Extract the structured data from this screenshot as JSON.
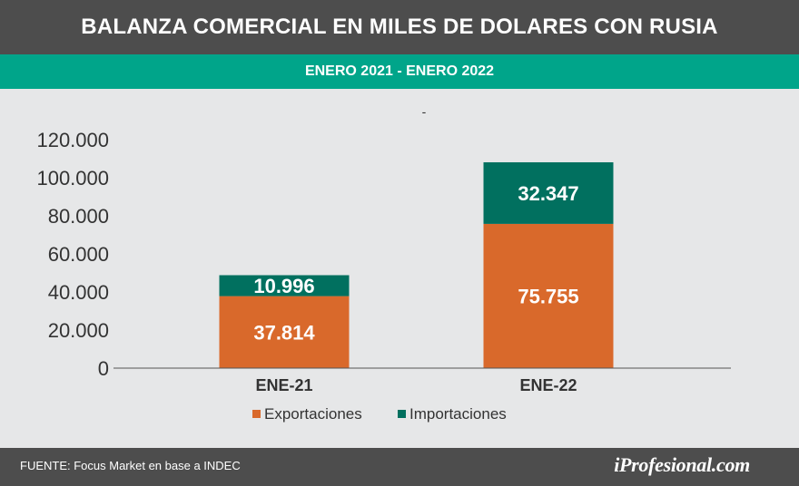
{
  "title": "BALANZA COMERCIAL EN MILES DE DOLARES CON RUSIA",
  "subtitle": "ENERO 2021 - ENERO 2022",
  "dash_mark": "-",
  "footer": {
    "source": "FUENTE: Focus Market en base a INDEC",
    "brand": "iProfesional.com"
  },
  "colors": {
    "exportaciones": "#d9692b",
    "importaciones": "#01705f",
    "axis_text": "#333333"
  },
  "chart_data": {
    "type": "bar",
    "stacked": true,
    "title": "BALANZA COMERCIAL EN MILES DE DOLARES CON RUSIA",
    "subtitle": "ENERO 2021 - ENERO 2022",
    "categories": [
      "ENE-21",
      "ENE-22"
    ],
    "series": [
      {
        "name": "Exportaciones",
        "values": [
          37814,
          75755
        ],
        "labels": [
          "37.814",
          "75.755"
        ]
      },
      {
        "name": "Importaciones",
        "values": [
          10996,
          32347
        ],
        "labels": [
          "10.996",
          "32.347"
        ]
      }
    ],
    "ylim": [
      0,
      120000
    ],
    "yticks": [
      0,
      20000,
      40000,
      60000,
      80000,
      100000,
      120000
    ],
    "ytick_labels": [
      "0",
      "20.000",
      "40.000",
      "60.000",
      "80.000",
      "100.000",
      "120.000"
    ],
    "xlabel": "",
    "ylabel": "",
    "grid": false,
    "legend": "bottom-center"
  }
}
